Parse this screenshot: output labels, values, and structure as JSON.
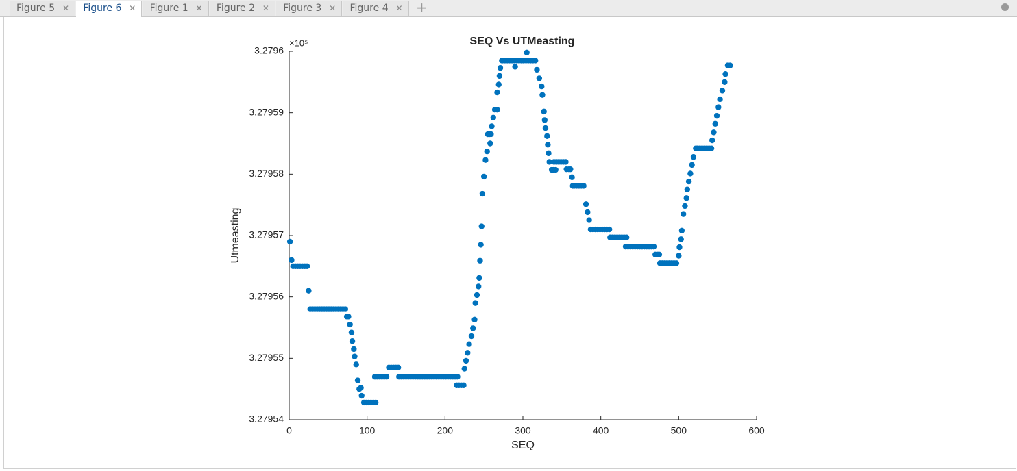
{
  "tabs": {
    "labels": [
      "Figure 5",
      "Figure 6",
      "Figure 1",
      "Figure 2",
      "Figure 3",
      "Figure 4"
    ],
    "active": 1
  },
  "chart_data": {
    "type": "scatter",
    "title": "SEQ Vs UTMeasting",
    "x_label": "SEQ",
    "y_label": "Utmeasting",
    "y_exponent": "×10⁵",
    "color": "#0072bd",
    "xlim": [
      0,
      600
    ],
    "xticks": [
      0,
      100,
      200,
      300,
      400,
      500,
      600
    ],
    "ylim": [
      3.27954,
      3.2796
    ],
    "yticks": [
      3.27954,
      3.27955,
      3.27956,
      3.27957,
      3.27958,
      3.27959,
      3.2796
    ],
    "x": [
      1,
      3,
      5,
      8,
      11,
      14,
      17,
      20,
      23,
      25,
      27,
      30,
      33,
      36,
      39,
      42,
      45,
      48,
      51,
      54,
      57,
      60,
      63,
      66,
      69,
      72,
      74,
      76,
      78,
      80,
      81,
      83,
      84,
      86,
      88,
      90,
      92,
      93,
      96,
      99,
      102,
      105,
      108,
      111,
      110,
      113,
      116,
      119,
      122,
      125,
      128,
      131,
      134,
      137,
      140,
      141,
      144,
      147,
      150,
      153,
      156,
      159,
      162,
      165,
      168,
      171,
      174,
      177,
      180,
      183,
      186,
      189,
      192,
      195,
      198,
      201,
      204,
      207,
      210,
      213,
      216,
      215,
      218,
      221,
      224,
      225,
      227,
      229,
      231,
      234,
      236,
      238,
      239,
      241,
      243,
      244,
      245,
      246,
      247,
      248,
      250,
      252,
      254,
      255,
      257,
      259,
      258,
      260,
      262,
      264,
      267,
      267,
      269,
      270,
      271,
      273,
      274,
      277,
      280,
      283,
      286,
      289,
      292,
      295,
      298,
      301,
      304,
      307,
      310,
      313,
      316,
      290,
      305,
      318,
      321,
      324,
      325,
      327,
      328,
      329,
      331,
      332,
      333,
      334,
      337,
      340,
      343,
      346,
      349,
      352,
      355,
      339,
      342,
      356,
      359,
      361,
      363,
      364,
      366,
      369,
      372,
      375,
      378,
      381,
      383,
      385,
      387,
      390,
      393,
      396,
      399,
      402,
      405,
      408,
      411,
      412,
      415,
      418,
      421,
      424,
      427,
      430,
      433,
      432,
      435,
      438,
      441,
      444,
      447,
      450,
      453,
      456,
      459,
      462,
      465,
      468,
      470,
      473,
      475,
      476,
      479,
      482,
      485,
      488,
      491,
      494,
      497,
      500,
      501,
      503,
      504,
      506,
      508,
      510,
      511,
      513,
      515,
      517,
      519,
      522,
      524,
      527,
      530,
      533,
      536,
      539,
      542,
      543,
      545,
      547,
      549,
      551,
      553,
      556,
      559,
      560,
      563,
      566
    ],
    "values": [
      3.279569,
      3.279566,
      3.279565,
      3.279565,
      3.279565,
      3.279565,
      3.279565,
      3.279565,
      3.279565,
      3.279561,
      3.279558,
      3.279558,
      3.279558,
      3.279558,
      3.279558,
      3.279558,
      3.279558,
      3.279558,
      3.279558,
      3.279558,
      3.279558,
      3.279558,
      3.279558,
      3.279558,
      3.279558,
      3.279558,
      3.2795568,
      3.2795568,
      3.2795555,
      3.2795542,
      3.2795528,
      3.2795515,
      3.2795503,
      3.279549,
      3.2795464,
      3.279545,
      3.2795452,
      3.2795439,
      3.2795428,
      3.2795428,
      3.2795428,
      3.2795428,
      3.2795428,
      3.2795428,
      3.279547,
      3.279547,
      3.279547,
      3.279547,
      3.279547,
      3.279547,
      3.2795485,
      3.2795485,
      3.2795485,
      3.2795485,
      3.2795485,
      3.279547,
      3.279547,
      3.279547,
      3.279547,
      3.279547,
      3.279547,
      3.279547,
      3.279547,
      3.279547,
      3.279547,
      3.279547,
      3.279547,
      3.279547,
      3.279547,
      3.279547,
      3.279547,
      3.279547,
      3.279547,
      3.279547,
      3.279547,
      3.279547,
      3.279547,
      3.279547,
      3.279547,
      3.279547,
      3.279547,
      3.2795456,
      3.2795456,
      3.2795456,
      3.2795456,
      3.2795483,
      3.2795496,
      3.2795509,
      3.2795523,
      3.2795536,
      3.2795549,
      3.2795563,
      3.279559,
      3.2795603,
      3.2795617,
      3.2795631,
      3.2795659,
      3.2795685,
      3.2795715,
      3.2795768,
      3.2795796,
      3.2795823,
      3.2795837,
      3.2795865,
      3.2795865,
      3.2795865,
      3.279585,
      3.2795878,
      3.2795892,
      3.2795905,
      3.2795905,
      3.2795933,
      3.2795946,
      3.279596,
      3.2795973,
      3.2795985,
      3.2795985,
      3.2795985,
      3.2795985,
      3.2795985,
      3.2795985,
      3.2795985,
      3.2795985,
      3.2795985,
      3.2795985,
      3.2795985,
      3.2795985,
      3.2795985,
      3.2795985,
      3.2795985,
      3.2795985,
      3.2795975,
      3.2795998,
      3.279597,
      3.2795956,
      3.2795943,
      3.2795929,
      3.2795902,
      3.2795888,
      3.2795875,
      3.2795862,
      3.2795848,
      3.2795834,
      3.279582,
      3.2795807,
      3.279582,
      3.279582,
      3.279582,
      3.279582,
      3.279582,
      3.279582,
      3.2795807,
      3.2795807,
      3.2795808,
      3.2795808,
      3.2795808,
      3.2795795,
      3.2795781,
      3.2795781,
      3.2795781,
      3.2795781,
      3.2795781,
      3.2795781,
      3.2795751,
      3.2795738,
      3.2795725,
      3.279571,
      3.279571,
      3.279571,
      3.279571,
      3.279571,
      3.279571,
      3.279571,
      3.279571,
      3.279571,
      3.2795697,
      3.2795697,
      3.2795697,
      3.2795697,
      3.2795697,
      3.2795697,
      3.2795697,
      3.2795697,
      3.2795682,
      3.2795682,
      3.2795682,
      3.2795682,
      3.2795682,
      3.2795682,
      3.2795682,
      3.2795682,
      3.2795682,
      3.2795682,
      3.2795682,
      3.2795682,
      3.2795682,
      3.2795669,
      3.2795669,
      3.2795669,
      3.2795655,
      3.2795655,
      3.2795655,
      3.2795655,
      3.2795655,
      3.2795655,
      3.2795655,
      3.2795655,
      3.2795667,
      3.2795681,
      3.2795694,
      3.2795708,
      3.2795735,
      3.2795748,
      3.2795761,
      3.2795775,
      3.2795788,
      3.2795801,
      3.2795815,
      3.2795828,
      3.2795842,
      3.2795842,
      3.2795842,
      3.2795842,
      3.2795842,
      3.2795842,
      3.2795842,
      3.2795842,
      3.2795855,
      3.2795868,
      3.2795882,
      3.2795895,
      3.2795909,
      3.2795922,
      3.2795936,
      3.279595,
      3.2795963,
      3.2795977,
      3.2795977
    ]
  }
}
